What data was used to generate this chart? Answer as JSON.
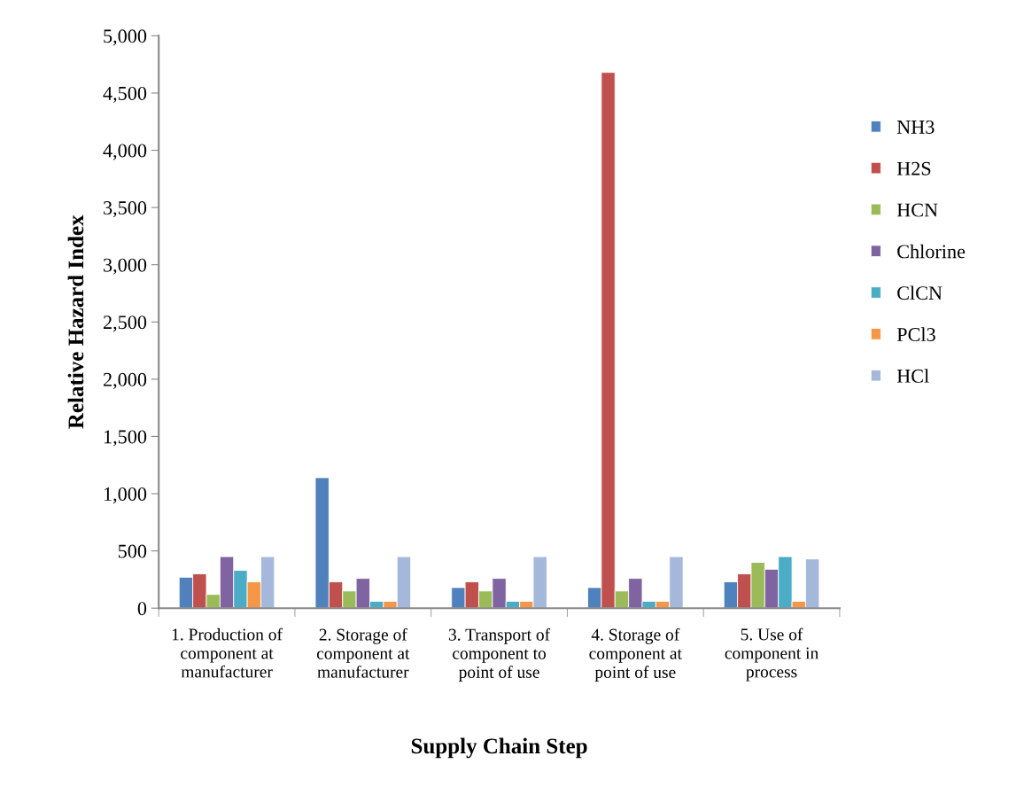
{
  "chart_data": {
    "type": "bar",
    "xlabel": "Supply Chain Step",
    "ylabel": "Relative Hazard Index",
    "categories": [
      "1. Production of component at manufacturer",
      "2. Storage of component at manufacturer",
      "3. Transport of component to point of use",
      "4. Storage of component at point of use",
      "5. Use of component in process"
    ],
    "series": [
      {
        "name": "NH3",
        "color": "#4f81bd",
        "values": [
          270,
          1140,
          180,
          180,
          230
        ]
      },
      {
        "name": "H2S",
        "color": "#c0504d",
        "values": [
          300,
          230,
          230,
          4680,
          300
        ]
      },
      {
        "name": "HCN",
        "color": "#9bbb59",
        "values": [
          120,
          150,
          150,
          150,
          400
        ]
      },
      {
        "name": "Chlorine",
        "color": "#8064a2",
        "values": [
          450,
          260,
          260,
          260,
          340
        ]
      },
      {
        "name": "ClCN",
        "color": "#4bacc6",
        "values": [
          330,
          60,
          60,
          60,
          450
        ]
      },
      {
        "name": "PCl3",
        "color": "#f79646",
        "values": [
          230,
          60,
          60,
          60,
          60
        ]
      },
      {
        "name": "HCl",
        "color": "#a5b8db",
        "values": [
          450,
          450,
          450,
          450,
          430
        ]
      }
    ],
    "ylim": [
      0,
      5000
    ],
    "yticks": [
      {
        "value": 0,
        "label": "0"
      },
      {
        "value": 500,
        "label": "500"
      },
      {
        "value": 1000,
        "label": "1,000"
      },
      {
        "value": 1500,
        "label": "1,500"
      },
      {
        "value": 2000,
        "label": "2,000"
      },
      {
        "value": 2500,
        "label": "2,500"
      },
      {
        "value": 3000,
        "label": "3,000"
      },
      {
        "value": 3500,
        "label": "3,500"
      },
      {
        "value": 4000,
        "label": "4,000"
      },
      {
        "value": 4500,
        "label": "4,500"
      },
      {
        "value": 5000,
        "label": "5,000"
      }
    ],
    "grid": false,
    "legend": "right"
  }
}
